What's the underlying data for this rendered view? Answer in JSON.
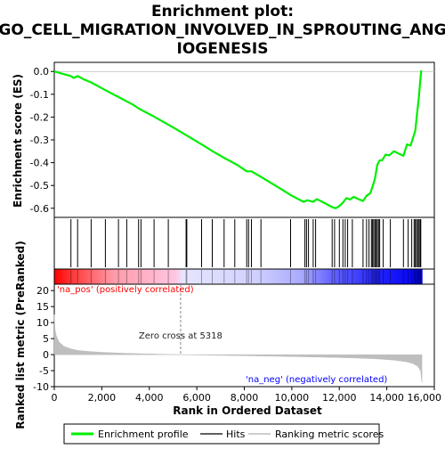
{
  "title_line1": "Enrichment plot:",
  "title_line2": "GO_CELL_MIGRATION_INVOLVED_IN_SPROUTING_ANG",
  "title_line3": "IOGENESIS",
  "chart_data": {
    "type": "line",
    "colors": {
      "enrichment": "#00ee00",
      "hits": "#000000",
      "metric": "#bebebe",
      "pos_label": "#ff0000",
      "neg_label": "#0000ff",
      "zero_line": "#888888"
    },
    "es_panel": {
      "ylabel": "Enrichment score (ES)",
      "ylim": [
        -0.64,
        0.04
      ],
      "yticks": [
        0.0,
        -0.1,
        -0.2,
        -0.3,
        -0.4,
        -0.5,
        -0.6
      ],
      "ytick_labels": [
        "0.0",
        "-0.1",
        "-0.2",
        "-0.3",
        "-0.4",
        "-0.5",
        "-0.6"
      ],
      "profile": [
        [
          0,
          0.0
        ],
        [
          700,
          -0.02
        ],
        [
          820,
          -0.028
        ],
        [
          980,
          -0.02
        ],
        [
          1250,
          -0.035
        ],
        [
          1550,
          -0.048
        ],
        [
          2150,
          -0.082
        ],
        [
          2700,
          -0.112
        ],
        [
          3300,
          -0.145
        ],
        [
          3600,
          -0.165
        ],
        [
          4200,
          -0.198
        ],
        [
          5000,
          -0.245
        ],
        [
          5600,
          -0.282
        ],
        [
          6200,
          -0.32
        ],
        [
          6700,
          -0.352
        ],
        [
          7200,
          -0.382
        ],
        [
          7700,
          -0.41
        ],
        [
          8100,
          -0.438
        ],
        [
          8300,
          -0.438
        ],
        [
          8700,
          -0.462
        ],
        [
          9300,
          -0.5
        ],
        [
          10000,
          -0.545
        ],
        [
          10500,
          -0.572
        ],
        [
          10650,
          -0.565
        ],
        [
          10900,
          -0.572
        ],
        [
          11050,
          -0.56
        ],
        [
          11400,
          -0.578
        ],
        [
          11700,
          -0.595
        ],
        [
          11850,
          -0.6
        ],
        [
          12000,
          -0.59
        ],
        [
          12150,
          -0.575
        ],
        [
          12300,
          -0.555
        ],
        [
          12450,
          -0.562
        ],
        [
          12600,
          -0.55
        ],
        [
          12800,
          -0.56
        ],
        [
          13000,
          -0.568
        ],
        [
          13150,
          -0.545
        ],
        [
          13300,
          -0.535
        ],
        [
          13400,
          -0.505
        ],
        [
          13500,
          -0.47
        ],
        [
          13600,
          -0.41
        ],
        [
          13700,
          -0.39
        ],
        [
          13800,
          -0.39
        ],
        [
          13950,
          -0.365
        ],
        [
          14100,
          -0.368
        ],
        [
          14300,
          -0.35
        ],
        [
          14500,
          -0.36
        ],
        [
          14700,
          -0.37
        ],
        [
          14850,
          -0.32
        ],
        [
          15000,
          -0.325
        ],
        [
          15200,
          -0.26
        ],
        [
          15300,
          -0.16
        ],
        [
          15350,
          -0.11
        ],
        [
          15400,
          -0.05
        ],
        [
          15450,
          0.005
        ]
      ]
    },
    "hits": [
      700,
      980,
      1550,
      2150,
      2700,
      3050,
      3550,
      3650,
      4200,
      4800,
      5550,
      5580,
      6200,
      6650,
      7150,
      7600,
      8100,
      8180,
      8300,
      8700,
      9950,
      10550,
      10620,
      10700,
      10900,
      11000,
      11700,
      11800,
      12000,
      12150,
      12250,
      12350,
      12550,
      13000,
      13150,
      13250,
      13350,
      13400,
      13450,
      13500,
      13550,
      13600,
      13650,
      13700,
      13850,
      14150,
      14700,
      14900,
      15050,
      15150,
      15200,
      15250,
      15300,
      15350,
      15400,
      15430
    ],
    "rank_panel": {
      "ylabel": "Ranked list metric (PreRanked)",
      "xlabel": "Rank in Ordered Dataset",
      "ylim": [
        -10,
        22
      ],
      "yticks": [
        20,
        15,
        10,
        5,
        0,
        -5,
        -10
      ],
      "ytick_labels": [
        "20",
        "15",
        "10",
        "5",
        "0",
        "-5",
        "-10"
      ],
      "xlim": [
        0,
        16000
      ],
      "xticks": [
        0,
        2000,
        4000,
        6000,
        8000,
        10000,
        12000,
        14000,
        16000
      ],
      "xtick_labels": [
        "0",
        "2,000",
        "4,000",
        "6,000",
        "8,000",
        "10,000",
        "12,000",
        "14,000",
        "16,000"
      ],
      "n_genes": 15500,
      "zero_cross": 5318,
      "metric_curve": [
        [
          0,
          12.5
        ],
        [
          30,
          8
        ],
        [
          80,
          6
        ],
        [
          200,
          4
        ],
        [
          400,
          2.6
        ],
        [
          700,
          1.8
        ],
        [
          1000,
          1.3
        ],
        [
          1500,
          0.95
        ],
        [
          2000,
          0.72
        ],
        [
          3000,
          0.42
        ],
        [
          4000,
          0.22
        ],
        [
          5318,
          0.0
        ],
        [
          7000,
          -0.22
        ],
        [
          9000,
          -0.45
        ],
        [
          11000,
          -0.75
        ],
        [
          12500,
          -1.0
        ],
        [
          13500,
          -1.3
        ],
        [
          14300,
          -1.7
        ],
        [
          14800,
          -2.2
        ],
        [
          15100,
          -2.8
        ],
        [
          15300,
          -3.6
        ],
        [
          15420,
          -5.0
        ],
        [
          15480,
          -8.6
        ]
      ],
      "zero_cross_label": "Zero cross at 5318",
      "pos_label": "'na_pos' (positively correlated)",
      "neg_label": "'na_neg' (negatively correlated)"
    },
    "legend": {
      "position": "bottom",
      "items": [
        {
          "label": "Enrichment profile",
          "color": "#00ee00"
        },
        {
          "label": "Hits",
          "color": "#000000"
        },
        {
          "label": "Ranking metric scores",
          "color": "#bebebe"
        }
      ]
    }
  }
}
